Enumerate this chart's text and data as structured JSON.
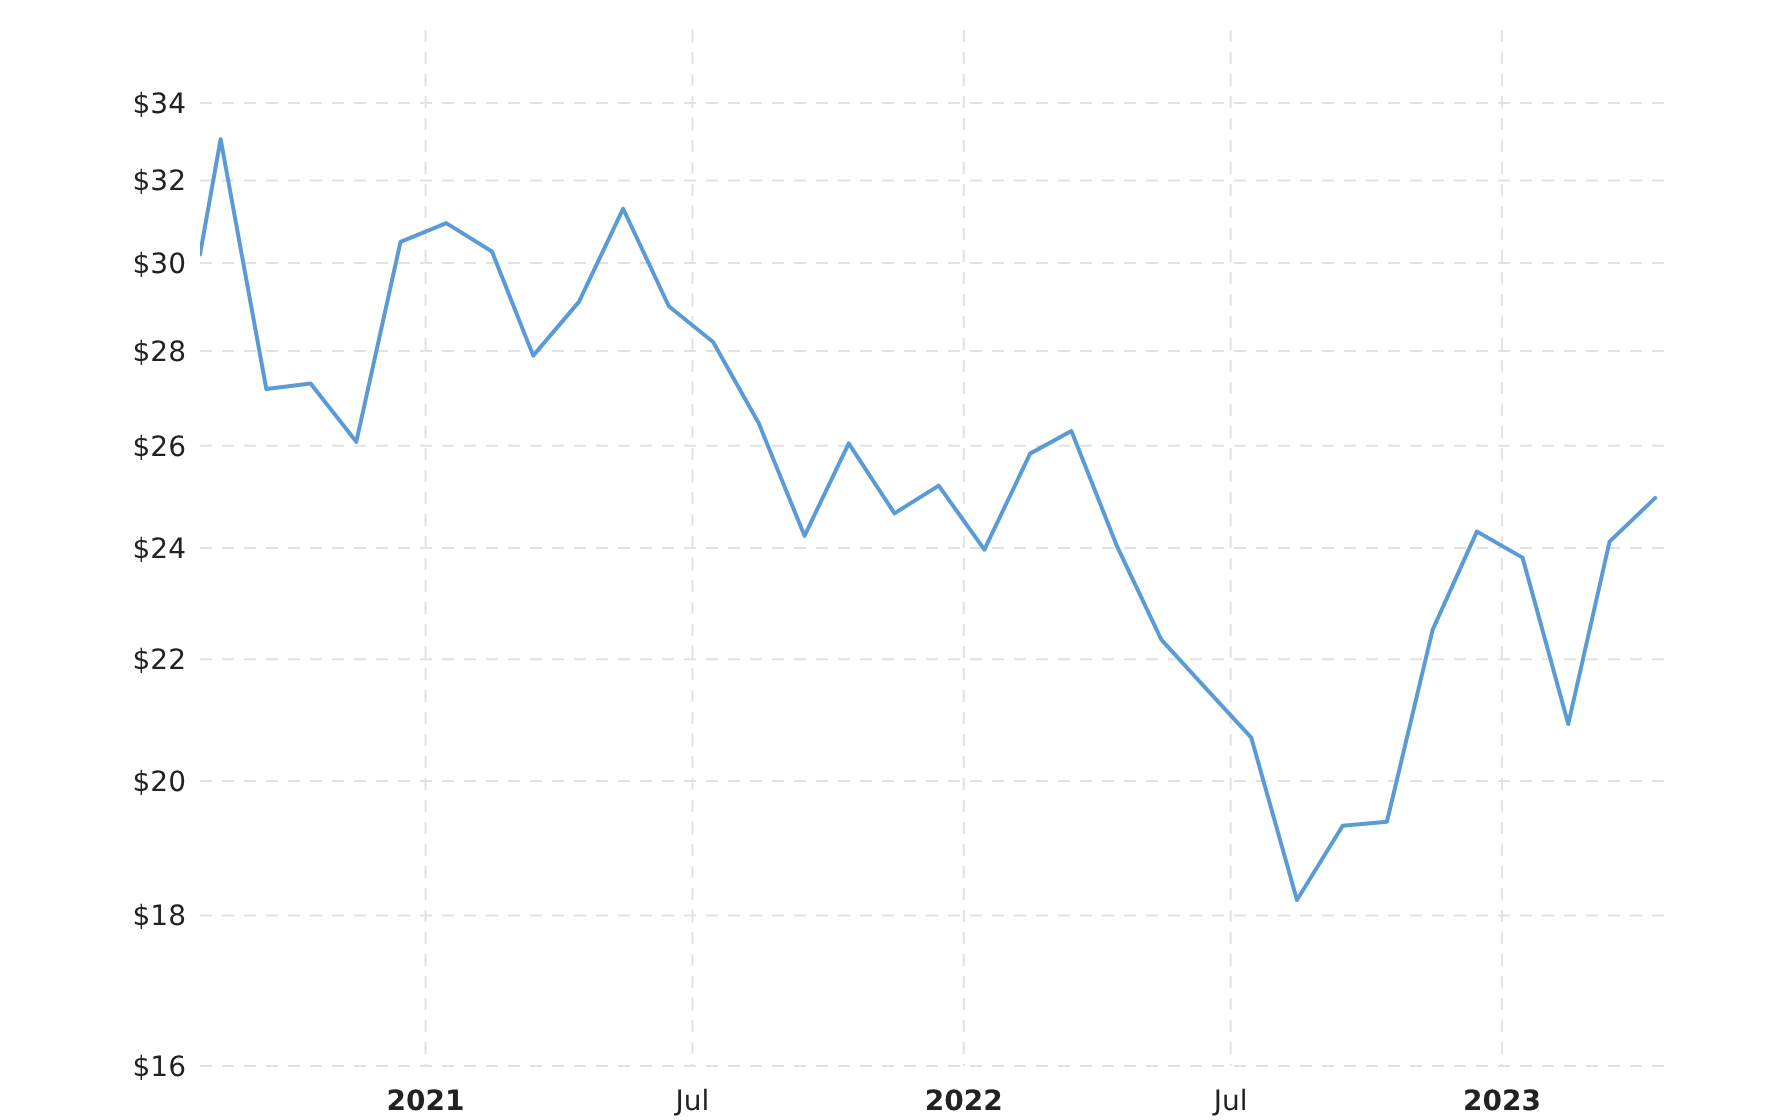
{
  "chart_data": {
    "type": "line",
    "x": [
      "2020-08-01",
      "2020-08-15",
      "2020-09-15",
      "2020-10-15",
      "2020-11-15",
      "2020-12-15",
      "2021-01-15",
      "2021-02-15",
      "2021-03-15",
      "2021-04-15",
      "2021-05-15",
      "2021-06-15",
      "2021-07-15",
      "2021-08-15",
      "2021-09-15",
      "2021-10-15",
      "2021-11-15",
      "2021-12-15",
      "2022-01-15",
      "2022-02-15",
      "2022-03-15",
      "2022-04-15",
      "2022-05-15",
      "2022-06-15",
      "2022-07-15",
      "2022-08-15",
      "2022-09-15",
      "2022-10-15",
      "2022-11-15",
      "2022-12-15",
      "2023-01-15",
      "2023-02-15",
      "2023-03-15",
      "2023-04-15"
    ],
    "series": [
      {
        "color": "#5b9bd5",
        "values": [
          30.2,
          33.05,
          27.18,
          27.3,
          26.08,
          30.5,
          30.95,
          30.27,
          27.9,
          29.1,
          31.3,
          29.0,
          28.2,
          26.46,
          24.23,
          26.05,
          24.66,
          25.2,
          23.97,
          25.84,
          26.3,
          24.03,
          22.34,
          21.48,
          20.69,
          18.22,
          19.31,
          19.37,
          22.51,
          24.31,
          23.82,
          20.91,
          24.12,
          24.96
        ]
      }
    ],
    "log": true,
    "xlim": [
      "2020-08-01",
      "2023-04-25"
    ],
    "ylim": [
      16,
      36
    ],
    "xticks": [
      {
        "value": "2021-01-01",
        "label": "2021"
      },
      {
        "value": "2021-07-01",
        "label": "Jul"
      },
      {
        "value": "2022-01-01",
        "label": "2022"
      },
      {
        "value": "2022-07-01",
        "label": "Jul"
      },
      {
        "value": "2023-01-01",
        "label": "2023"
      }
    ],
    "yticks": [
      {
        "value": 16,
        "label": "$16"
      },
      {
        "value": 18,
        "label": "$18"
      },
      {
        "value": 20,
        "label": "$20"
      },
      {
        "value": 22,
        "label": "$22"
      },
      {
        "value": 24,
        "label": "$24"
      },
      {
        "value": 26,
        "label": "$26"
      },
      {
        "value": 28,
        "label": "$28"
      },
      {
        "value": 30,
        "label": "$30"
      },
      {
        "value": 32,
        "label": "$32"
      },
      {
        "value": 34,
        "label": "$34"
      }
    ],
    "grid": true,
    "line_style": "solid"
  }
}
